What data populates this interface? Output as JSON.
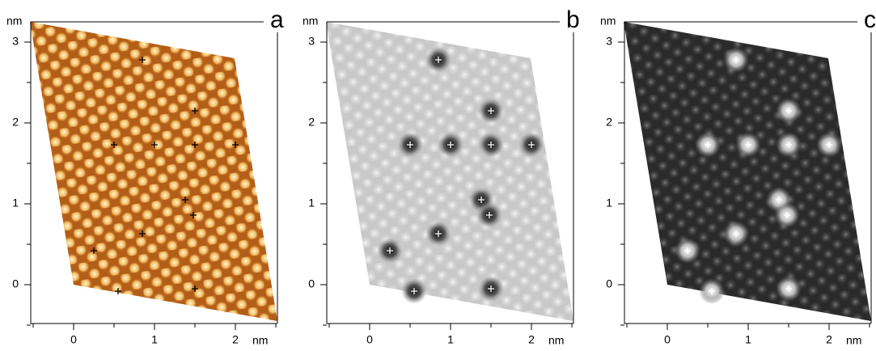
{
  "panels": [
    {
      "letter": "a",
      "y_unit": "nm",
      "x_unit": "nm",
      "yticks": [
        0,
        1,
        2,
        3
      ],
      "xticks": [
        0,
        1,
        2
      ]
    },
    {
      "letter": "b",
      "y_unit": "nm",
      "x_unit": "nm",
      "yticks": [
        0,
        1,
        2,
        3
      ],
      "xticks": [
        0,
        1,
        2
      ]
    },
    {
      "letter": "c",
      "y_unit": "nm",
      "x_unit": "nm",
      "yticks": [
        0,
        1,
        2,
        3
      ],
      "xticks": [
        0,
        1,
        2
      ]
    }
  ]
}
